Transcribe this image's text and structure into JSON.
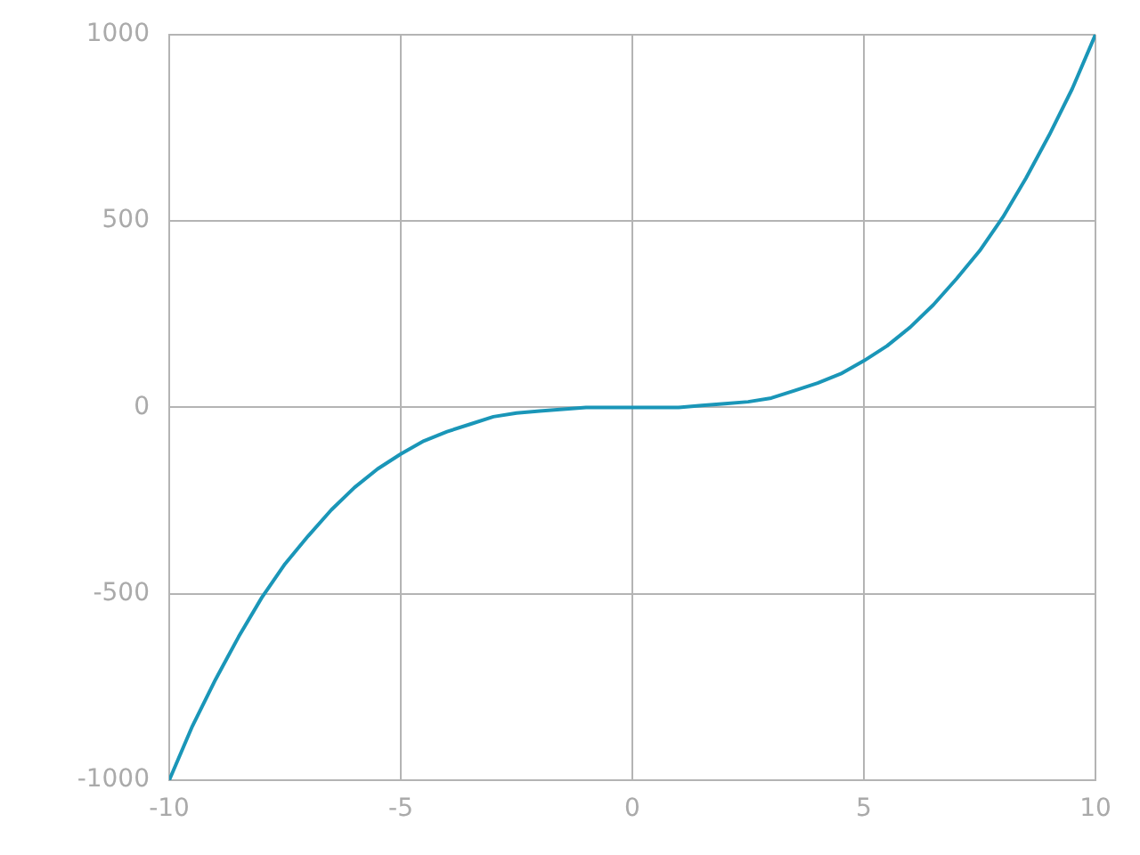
{
  "chart_data": {
    "type": "line",
    "x": [
      -10,
      -9.5,
      -9,
      -8.5,
      -8,
      -7.5,
      -7,
      -6.5,
      -6,
      -5.5,
      -5,
      -4.5,
      -4,
      -3.5,
      -3,
      -2.5,
      -2,
      -1.5,
      -1,
      -0.5,
      0,
      0.5,
      1,
      1.5,
      2,
      2.5,
      3,
      3.5,
      4,
      4.5,
      5,
      5.5,
      6,
      6.5,
      7,
      7.5,
      8,
      8.5,
      9,
      9.5,
      10
    ],
    "series": [
      {
        "color": "#1a96b8",
        "values": [
          -1000,
          -855,
          -730,
          -615,
          -510,
          -420,
          -345,
          -275,
          -215,
          -165,
          -125,
          -90,
          -65,
          -45,
          -25,
          -15,
          -10,
          -5,
          0,
          0,
          0,
          0,
          0,
          5,
          10,
          15,
          25,
          45,
          65,
          90,
          125,
          165,
          215,
          275,
          345,
          420,
          510,
          615,
          730,
          855,
          1000
        ]
      }
    ],
    "xlim": [
      -10,
      10
    ],
    "xticks": [
      -10,
      -5,
      0,
      5,
      10
    ],
    "ylim": [
      -1000,
      1000
    ],
    "yticks": [
      -1000,
      -500,
      0,
      500,
      1000
    ],
    "grid": true,
    "marker": "none",
    "line_style": "solid"
  }
}
